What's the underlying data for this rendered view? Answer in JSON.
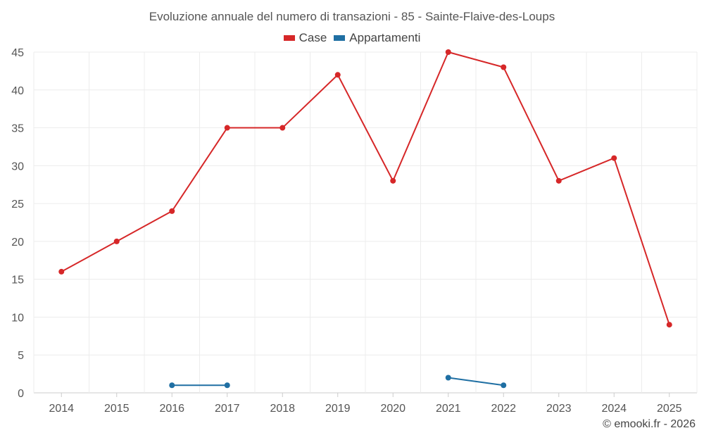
{
  "chart_data": {
    "type": "line",
    "title": "Evoluzione annuale del numero di transazioni - 85 - Sainte-Flaive-des-Loups",
    "categories": [
      "2014",
      "2015",
      "2016",
      "2017",
      "2018",
      "2019",
      "2020",
      "2021",
      "2022",
      "2023",
      "2024",
      "2025"
    ],
    "series": [
      {
        "name": "Case",
        "color": "#d62728",
        "values": [
          16,
          20,
          24,
          35,
          35,
          42,
          28,
          45,
          43,
          28,
          31,
          9
        ]
      },
      {
        "name": "Appartamenti",
        "color": "#1f6fa3",
        "values": [
          null,
          null,
          1,
          1,
          null,
          null,
          null,
          2,
          1,
          null,
          null,
          null
        ]
      }
    ],
    "ylim": [
      0,
      45
    ],
    "yticks": [
      0,
      5,
      10,
      15,
      20,
      25,
      30,
      35,
      40,
      45
    ],
    "xlabel": "",
    "ylabel": "",
    "grid": true,
    "legend_position": "top-center"
  },
  "credit": "© emooki.fr - 2026"
}
